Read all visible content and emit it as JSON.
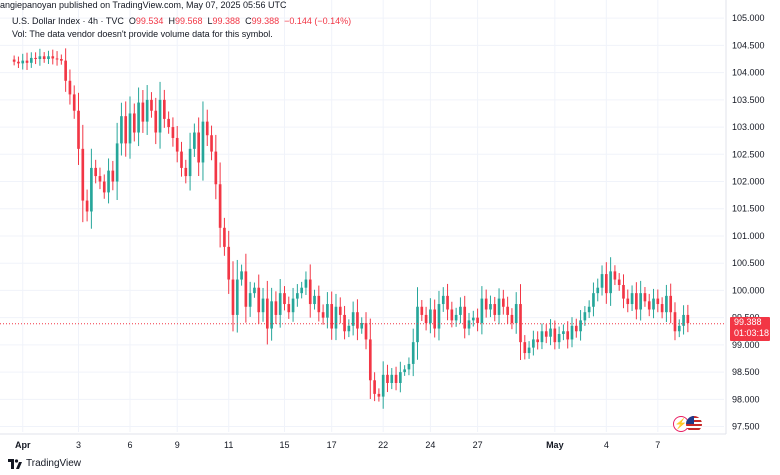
{
  "header": {
    "published": "angiepanoyan published on TradingView.com, May 07, 2025 05:56 UTC"
  },
  "legend": {
    "symbol": "U.S. Dollar Index · 4h · TVC",
    "o_label": "O",
    "o_value": "99.534",
    "h_label": "H",
    "h_value": "99.568",
    "l_label": "L",
    "l_value": "99.388",
    "c_label": "C",
    "c_value": "99.388",
    "change": "−0.144 (−0.14%)",
    "volume_note": "Vol: The data vendor doesn't provide volume data for this symbol."
  },
  "price_badge": {
    "price": "99.388",
    "countdown": "01:03:18"
  },
  "footer": {
    "brand": "TradingView"
  },
  "icons": [
    "lightning-icon",
    "us-flag-icon"
  ],
  "colors": {
    "up": "#26a69a",
    "down": "#f23645",
    "grid": "#f0f3fa",
    "axis_text": "#131722"
  },
  "chart_data": {
    "type": "candlestick",
    "title": "U.S. Dollar Index · 4h · TVC",
    "ylim": [
      97.4,
      105.15
    ],
    "y_ticks": [
      "97.500",
      "98.000",
      "98.500",
      "99.000",
      "99.500",
      "100.000",
      "100.500",
      "101.000",
      "101.500",
      "102.000",
      "102.500",
      "103.000",
      "103.500",
      "104.000",
      "104.500",
      "105.000"
    ],
    "y_tick_values": [
      97.5,
      98,
      98.5,
      99,
      99.5,
      100,
      100.5,
      101,
      101.5,
      102,
      102.5,
      103,
      103.5,
      104,
      104.5,
      105
    ],
    "x_tick_labels": [
      "Apr",
      "3",
      "6",
      "9",
      "11",
      "15",
      "17",
      "22",
      "24",
      "27",
      "May",
      "4",
      "7"
    ],
    "x_tick_index": [
      2,
      15,
      27,
      38,
      50,
      63,
      74,
      86,
      97,
      108,
      126,
      138,
      150
    ],
    "last_price": 99.388,
    "closes": [
      104.2,
      104.17,
      104.22,
      104.18,
      104.27,
      104.25,
      104.3,
      104.25,
      104.3,
      104.26,
      104.25,
      104.22,
      103.85,
      103.6,
      103.3,
      102.6,
      101.65,
      101.45,
      102.25,
      102.1,
      102.0,
      101.8,
      102.2,
      102.0,
      102.7,
      103.2,
      102.7,
      103.25,
      102.9,
      103.45,
      103.1,
      103.5,
      103.3,
      102.9,
      103.5,
      103.15,
      103.0,
      102.8,
      102.55,
      102.25,
      102.1,
      102.6,
      102.9,
      102.35,
      103.1,
      102.85,
      102.55,
      101.95,
      101.15,
      100.8,
      100.2,
      99.55,
      100.2,
      100.35,
      99.7,
      99.95,
      100.05,
      99.6,
      99.85,
      99.3,
      99.8,
      99.55,
      99.95,
      99.75,
      99.6,
      99.85,
      99.95,
      100.05,
      100.2,
      99.75,
      99.9,
      99.6,
      99.5,
      99.75,
      99.3,
      99.7,
      99.55,
      99.25,
      99.35,
      99.6,
      99.3,
      99.4,
      99.1,
      98.35,
      98.1,
      98.05,
      98.45,
      98.3,
      98.45,
      98.3,
      98.5,
      98.55,
      98.65,
      99.05,
      99.7,
      99.55,
      99.4,
      99.65,
      99.3,
      99.75,
      99.9,
      99.65,
      99.45,
      99.55,
      99.7,
      99.3,
      99.45,
      99.5,
      99.4,
      99.85,
      99.65,
      99.75,
      99.55,
      99.85,
      99.7,
      99.55,
      99.4,
      99.75,
      99.05,
      98.85,
      98.95,
      99.1,
      99.05,
      99.25,
      99.15,
      99.3,
      99.05,
      99.2,
      99.25,
      99.1,
      99.35,
      99.25,
      99.45,
      99.6,
      99.7,
      99.95,
      100.05,
      100.3,
      99.95,
      100.35,
      100.2,
      100.1,
      99.85,
      99.75,
      99.95,
      99.65,
      99.95,
      99.8,
      99.65,
      99.85,
      99.75,
      99.6,
      99.9,
      99.6,
      99.25,
      99.35,
      99.55,
      99.4
    ]
  }
}
